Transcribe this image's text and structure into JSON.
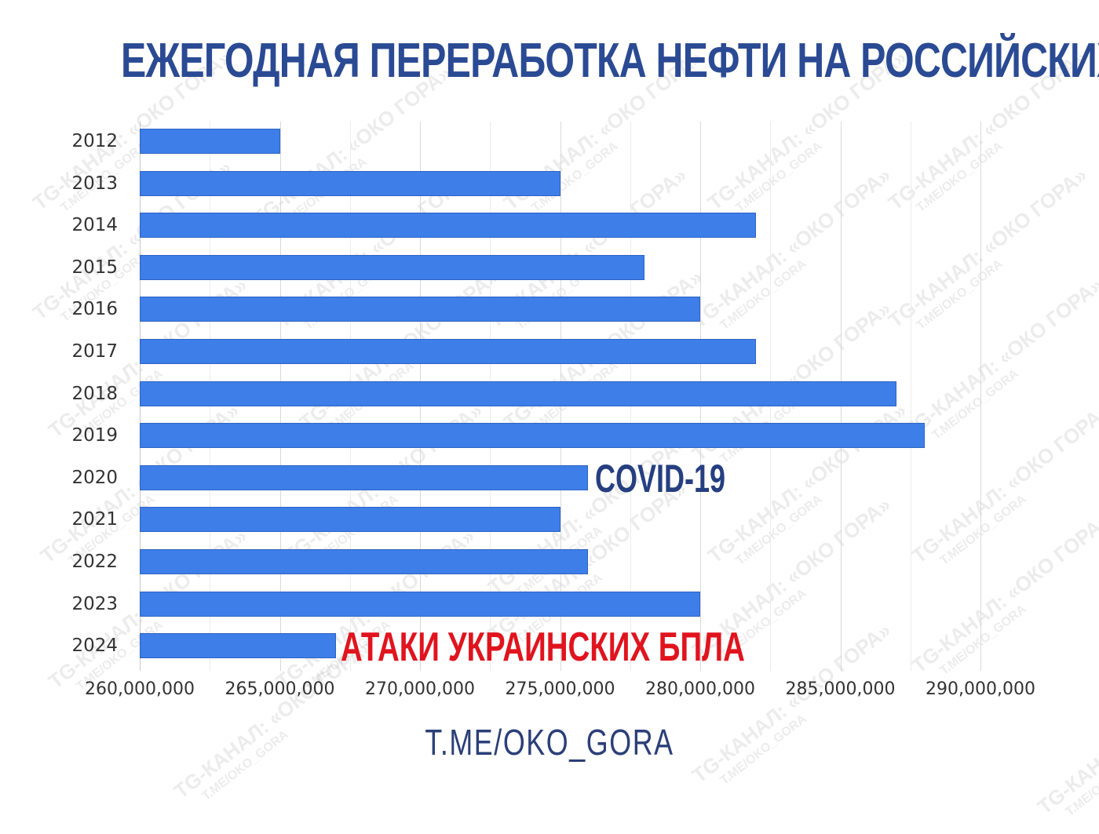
{
  "title": "ЕЖЕГОДНАЯ ПЕРЕРАБОТКА НЕФТИ НА РОССИЙСКИХ НПЗ:",
  "footer": "T.ME/OKO_GORA",
  "watermark": {
    "line1": "TG-КАНАЛ: «ОКО ГОРА»",
    "line2": "T.ME/OKO_GORA"
  },
  "annotations": {
    "covid": {
      "text": "COVID-19",
      "year": "2020",
      "color": "#253f80"
    },
    "drones": {
      "text": "АТАКИ УКРАИНСКИХ БПЛА",
      "year": "2024",
      "color": "#e0141e"
    }
  },
  "colors": {
    "bar": "#3d7ee8",
    "title": "#2b4a94",
    "grid": "#d9d9d9"
  },
  "chart_data": {
    "type": "bar",
    "orientation": "horizontal",
    "title": "ЕЖЕГОДНАЯ ПЕРЕРАБОТКА НЕФТИ НА РОССИЙСКИХ НПЗ:",
    "xlabel": "",
    "ylabel": "",
    "categories": [
      "2012",
      "2013",
      "2014",
      "2015",
      "2016",
      "2017",
      "2018",
      "2019",
      "2020",
      "2021",
      "2022",
      "2023",
      "2024"
    ],
    "values": [
      265000000,
      275000000,
      282000000,
      278000000,
      280000000,
      282000000,
      287000000,
      288000000,
      276000000,
      275000000,
      276000000,
      280000000,
      267000000
    ],
    "xlim": [
      260000000,
      290000000
    ],
    "xticks": [
      "260,000,000",
      "265,000,000",
      "270,000,000",
      "275,000,000",
      "280,000,000",
      "285,000,000",
      "290,000,000"
    ],
    "grid": true,
    "legend": "none",
    "annotations": [
      {
        "category": "2020",
        "text": "COVID-19"
      },
      {
        "category": "2024",
        "text": "АТАКИ УКРАИНСКИХ БПЛА"
      }
    ]
  }
}
